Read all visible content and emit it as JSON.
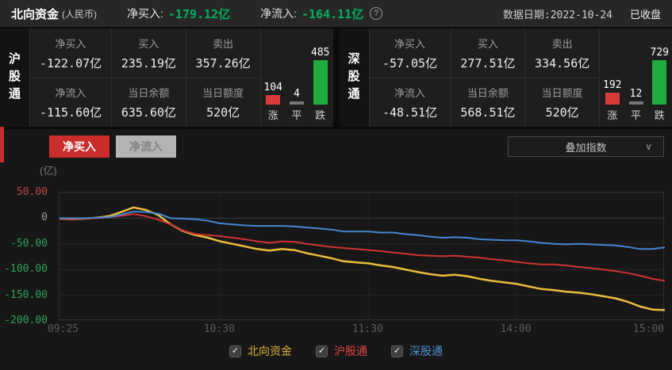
{
  "header": {
    "title": "北向资金",
    "title_suffix": "(人民币)",
    "net_buy_label": "净买入:",
    "net_buy_value": "-179.12亿",
    "net_inflow_label": "净流入:",
    "net_inflow_value": "-164.11亿",
    "help_icon": "?",
    "date_label": "数据日期:",
    "date_value": "2022-10-24",
    "market_status": "已收盘"
  },
  "colors": {
    "value_green": "#00b05c",
    "bar_red": "#d93a3a",
    "bar_flat": "#757575",
    "bar_green": "#1fae3e",
    "accent_red": "#cb2c2c"
  },
  "panels": [
    {
      "name": "沪股通",
      "net_buy": {
        "label": "净买入",
        "value": "-122.07亿"
      },
      "buy": {
        "label": "买入",
        "value": "235.19亿"
      },
      "sell": {
        "label": "卖出",
        "value": "357.26亿"
      },
      "net_inflow": {
        "label": "净流入",
        "value": "-115.60亿"
      },
      "balance": {
        "label": "当日余额",
        "value": "635.60亿"
      },
      "quota": {
        "label": "当日额度",
        "value": "520亿"
      },
      "up": {
        "label": "涨",
        "value": 104
      },
      "flat": {
        "label": "平",
        "value": 4
      },
      "down": {
        "label": "跌",
        "value": 485
      }
    },
    {
      "name": "深股通",
      "net_buy": {
        "label": "净买入",
        "value": "-57.05亿"
      },
      "buy": {
        "label": "买入",
        "value": "277.51亿"
      },
      "sell": {
        "label": "卖出",
        "value": "334.56亿"
      },
      "net_inflow": {
        "label": "净流入",
        "value": "-48.51亿"
      },
      "balance": {
        "label": "当日余额",
        "value": "568.51亿"
      },
      "quota": {
        "label": "当日额度",
        "value": "520亿"
      },
      "up": {
        "label": "涨",
        "value": 192
      },
      "flat": {
        "label": "平",
        "value": 12
      },
      "down": {
        "label": "跌",
        "value": 729
      }
    }
  ],
  "toolbar": {
    "tabs": [
      {
        "label": "净买入",
        "active": true
      },
      {
        "label": "净流入",
        "active": false
      }
    ],
    "overlay_select": {
      "value": "叠加指数"
    }
  },
  "chart_data": {
    "type": "line",
    "unit_label": "(亿)",
    "ylim": [
      -200,
      50
    ],
    "x_max": 245,
    "grid": true,
    "yticks": [
      {
        "value": 50,
        "label": "50.00",
        "color": "#c04545"
      },
      {
        "value": 0,
        "label": "0",
        "color": "#9a9a9a"
      },
      {
        "value": -50,
        "label": "-50.00",
        "color": "#2fa35a"
      },
      {
        "value": -100,
        "label": "-100.00",
        "color": "#2fa35a"
      },
      {
        "value": -150,
        "label": "-150.00",
        "color": "#2fa35a"
      },
      {
        "value": -200,
        "label": "-200.00",
        "color": "#2fa35a"
      }
    ],
    "xticks": [
      {
        "label": "09:25",
        "t": 0
      },
      {
        "label": "10:30",
        "t": 65
      },
      {
        "label": "11:30",
        "t": 125
      },
      {
        "label": "14:00",
        "t": 185
      },
      {
        "label": "15:00",
        "t": 245
      }
    ],
    "x_minutes": [
      0,
      5,
      10,
      15,
      20,
      25,
      30,
      35,
      40,
      45,
      50,
      55,
      60,
      65,
      70,
      75,
      80,
      85,
      90,
      95,
      100,
      105,
      110,
      115,
      120,
      125,
      130,
      135,
      140,
      145,
      150,
      155,
      160,
      165,
      170,
      175,
      180,
      185,
      190,
      195,
      200,
      205,
      210,
      215,
      220,
      225,
      230,
      235,
      240,
      245
    ],
    "series": [
      {
        "id": "north-funds",
        "name": "北向资金",
        "color": "#e8be3c",
        "width": 2.5,
        "values": [
          -1,
          -2,
          -1,
          1,
          4,
          12,
          21,
          16,
          6,
          -12,
          -25,
          -33,
          -38,
          -45,
          -50,
          -55,
          -60,
          -63,
          -60,
          -62,
          -68,
          -73,
          -78,
          -84,
          -86,
          -88,
          -92,
          -95,
          -100,
          -105,
          -109,
          -112,
          -110,
          -113,
          -118,
          -122,
          -125,
          -128,
          -133,
          -138,
          -140,
          -143,
          -145,
          -148,
          -152,
          -156,
          -163,
          -172,
          -178,
          -179
        ]
      },
      {
        "id": "sh-connect",
        "name": "沪股通",
        "color": "#cf3333",
        "width": 2,
        "values": [
          -1,
          -2,
          -1,
          0,
          2,
          5,
          8,
          4,
          -3,
          -12,
          -24,
          -31,
          -33,
          -35,
          -38,
          -41,
          -45,
          -48,
          -45,
          -46,
          -50,
          -53,
          -56,
          -58,
          -60,
          -62,
          -64,
          -67,
          -69,
          -72,
          -73,
          -74,
          -73,
          -75,
          -77,
          -80,
          -82,
          -85,
          -88,
          -90,
          -90,
          -92,
          -95,
          -97,
          -100,
          -103,
          -107,
          -112,
          -118,
          -122
        ]
      },
      {
        "id": "sz-connect",
        "name": "深股通",
        "color": "#4586d0",
        "width": 2,
        "values": [
          0,
          0,
          0,
          1,
          2,
          7,
          13,
          12,
          9,
          0,
          -1,
          -2,
          -5,
          -10,
          -12,
          -14,
          -15,
          -15,
          -15,
          -16,
          -18,
          -20,
          -22,
          -26,
          -26,
          -26,
          -28,
          -28,
          -31,
          -33,
          -36,
          -38,
          -37,
          -38,
          -41,
          -42,
          -43,
          -43,
          -45,
          -48,
          -50,
          -51,
          -50,
          -51,
          -52,
          -53,
          -56,
          -60,
          -60,
          -57
        ]
      }
    ]
  },
  "legend": {
    "items": [
      {
        "label": "北向资金",
        "color": "#d8b23c",
        "checked": true,
        "check_glyph": "✓"
      },
      {
        "label": "沪股通",
        "color": "#e24444",
        "checked": true,
        "check_glyph": "✓"
      },
      {
        "label": "深股通",
        "color": "#5090d3",
        "checked": true,
        "check_glyph": "✓"
      }
    ]
  }
}
